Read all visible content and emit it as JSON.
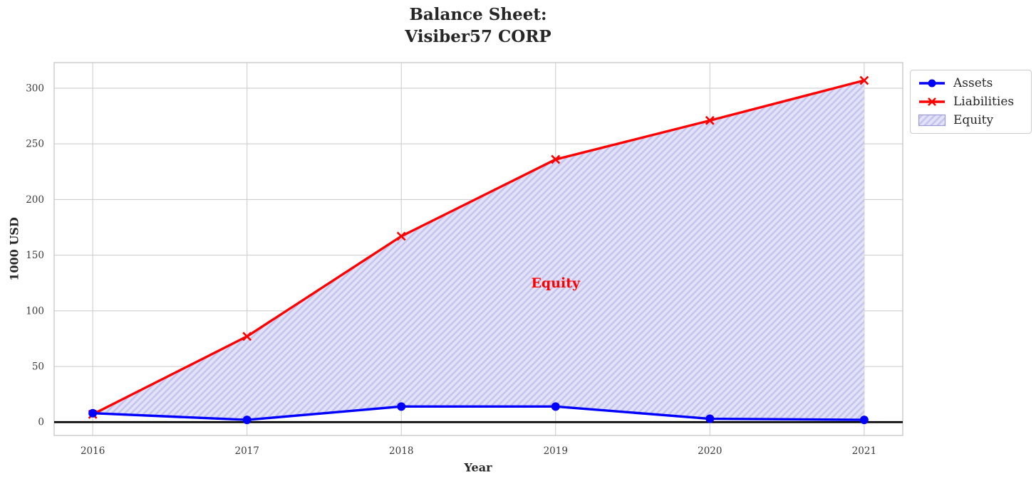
{
  "title": {
    "line1": "Balance Sheet:",
    "line2": "Visiber57 CORP"
  },
  "chart_data": {
    "type": "line",
    "title": "Balance Sheet: Visiber57 CORP",
    "xlabel": "Year",
    "ylabel": "1000 USD",
    "x": [
      2016,
      2017,
      2018,
      2019,
      2020,
      2021
    ],
    "x_ticklabels": [
      "2016",
      "2017",
      "2018",
      "2019",
      "2020",
      "2021"
    ],
    "y_ticks": [
      0,
      50,
      100,
      150,
      200,
      250,
      300
    ],
    "xlim": [
      2015.75,
      2021.25
    ],
    "ylim": [
      -12,
      323
    ],
    "grid": true,
    "zero_line": true,
    "legend_position": "outside-top-right",
    "series": [
      {
        "name": "Assets",
        "color": "#0000ff",
        "marker": "circle",
        "values": [
          8,
          2,
          14,
          14,
          3,
          2
        ]
      },
      {
        "name": "Liabilities",
        "color": "#ff0000",
        "marker": "x",
        "values": [
          7,
          77,
          167,
          236,
          271,
          307
        ]
      }
    ],
    "fill_between": {
      "name": "Equity",
      "upper_series": "Liabilities",
      "lower_series": "Assets",
      "facecolor": "#e3e3f8",
      "hatch": "//",
      "hatch_color": "#c5c5ee",
      "edge_color": "#9b9bd8"
    },
    "annotation": {
      "text": "Equity",
      "color": "#ff0000",
      "x": 2019,
      "y": 125
    }
  },
  "legend": {
    "items": [
      "Assets",
      "Liabilities",
      "Equity"
    ]
  }
}
